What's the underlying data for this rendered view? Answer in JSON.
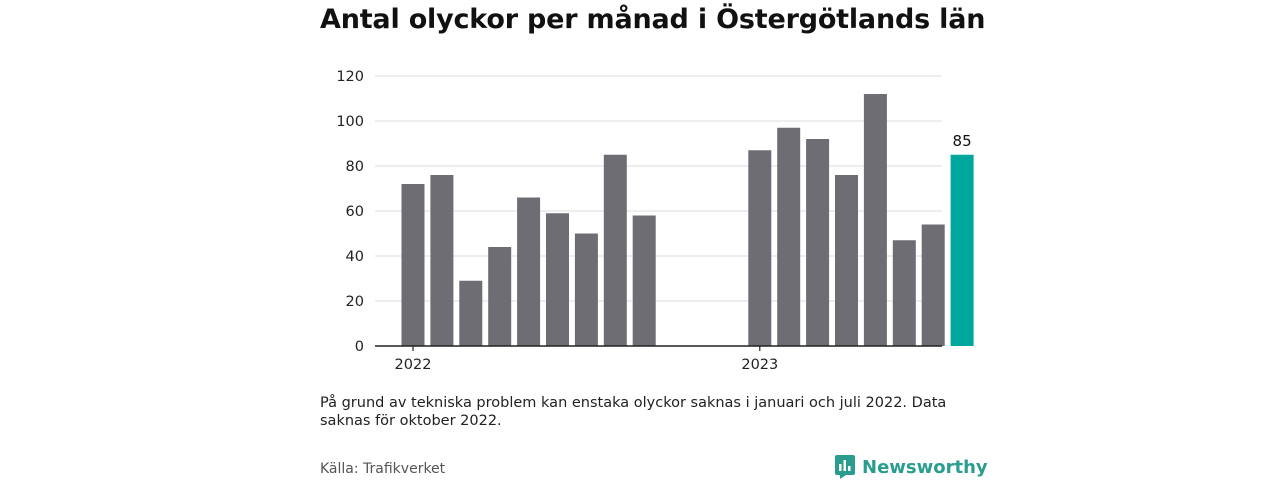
{
  "title": "Antal olyckor per månad i Östergötlands län",
  "note": "På grund av tekniska problem kan enstaka olyckor saknas i januari och juli 2022. Data saknas för oktober 2022.",
  "source": "Källa: Trafikverket",
  "brand": "Newsworthy",
  "colors": {
    "bar": "#6e6d73",
    "highlight": "#00a79d",
    "grid": "#dddddd",
    "axis": "#222222",
    "brand": "#2a9d8f"
  },
  "icons": {
    "brand_logo": "bar-chart-logo-icon"
  },
  "chart_data": {
    "type": "bar",
    "title": "Antal olyckor per månad i Östergötlands län",
    "xlabel": "",
    "ylabel": "",
    "ylim": [
      0,
      120
    ],
    "yticks": [
      "0",
      "20",
      "40",
      "60",
      "80",
      "100",
      "120"
    ],
    "grid": true,
    "year_labels": [
      "2022",
      "2023"
    ],
    "categories": [
      "2022-01",
      "2022-02",
      "2022-03",
      "2022-04",
      "2022-05",
      "2022-06",
      "2022-07",
      "2022-08",
      "2022-09",
      "2022-10",
      "2022-11",
      "2022-12",
      "2023-01",
      "2023-02",
      "2023-03",
      "2023-04",
      "2023-05",
      "2023-06",
      "2023-07",
      "2023-08"
    ],
    "values": [
      72,
      76,
      29,
      44,
      66,
      59,
      50,
      85,
      58,
      null,
      null,
      null,
      87,
      97,
      92,
      76,
      112,
      47,
      54,
      85
    ],
    "highlight_label": "85"
  }
}
